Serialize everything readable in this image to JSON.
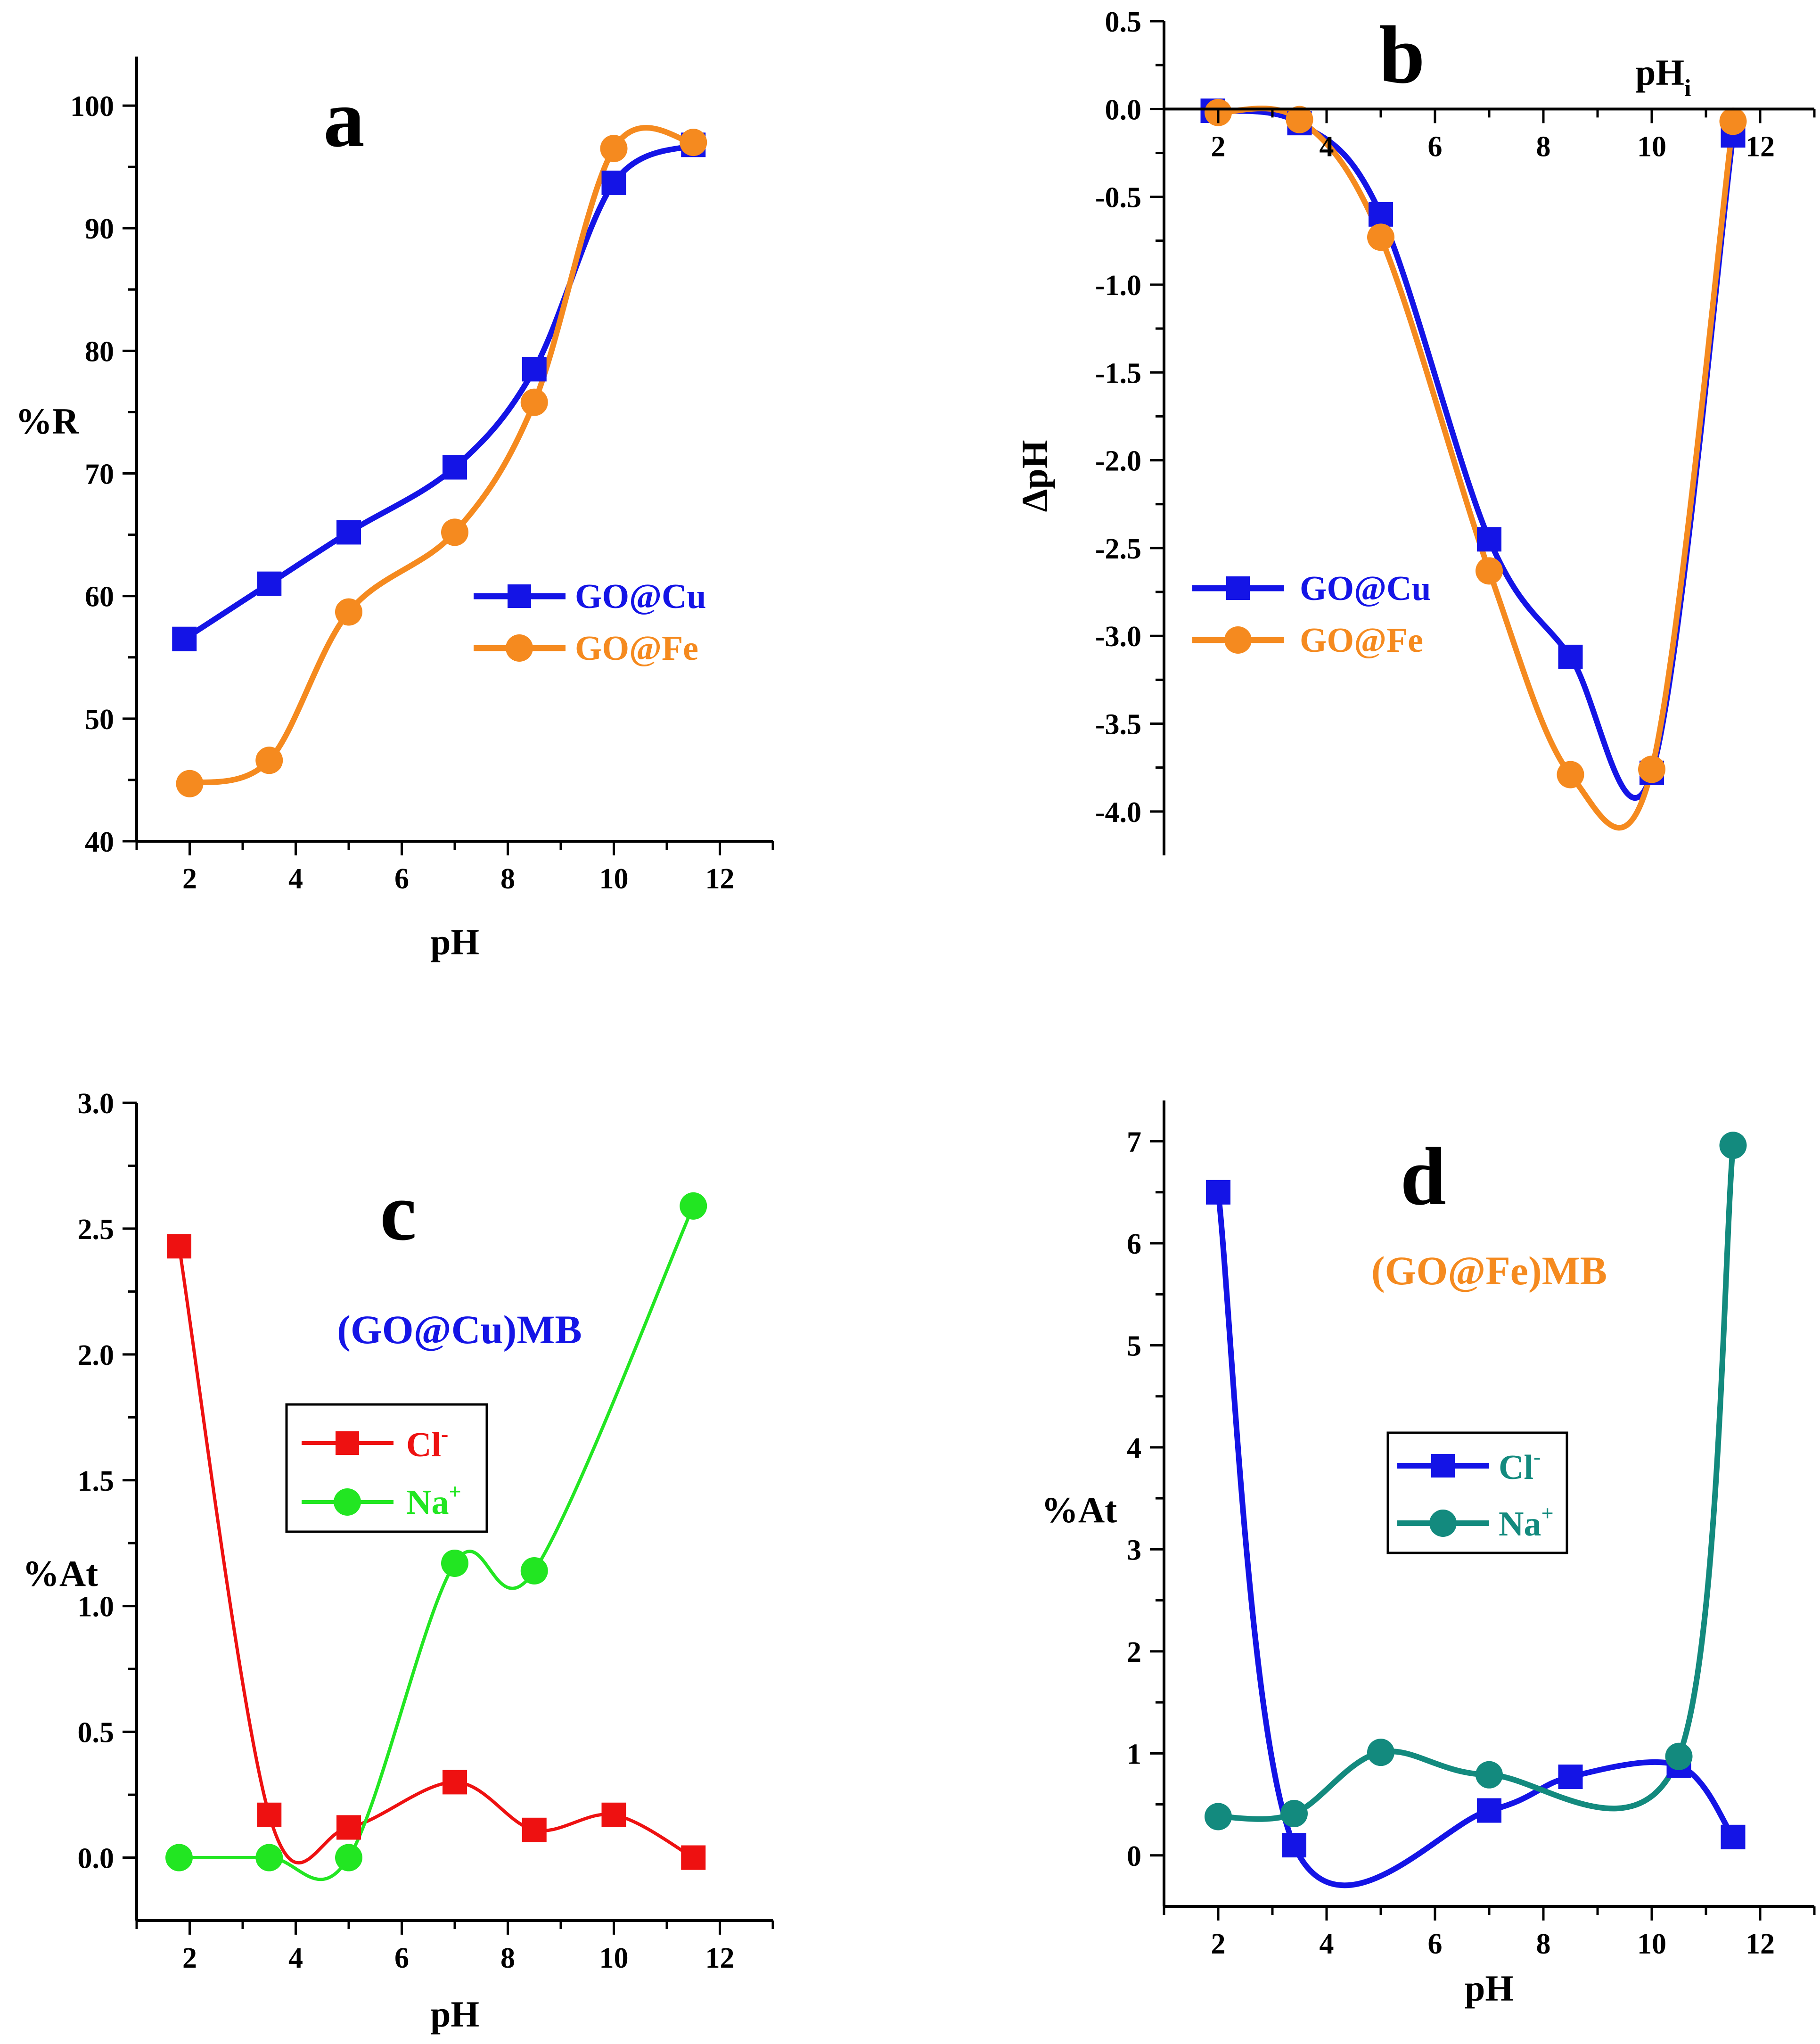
{
  "colors": {
    "blue": "#1414e6",
    "orange": "#f58a1f",
    "red": "#ee1111",
    "green": "#22e622",
    "teal": "#138a7e",
    "axis": "#000000"
  },
  "panels": [
    {
      "id": "a",
      "letter": "a",
      "xlabel": "pH",
      "ylabel": "%R",
      "xticks": [
        "2",
        "4",
        "6",
        "8",
        "10",
        "12"
      ],
      "yticks": [
        "40",
        "50",
        "60",
        "70",
        "80",
        "90",
        "100"
      ],
      "legend": [
        {
          "label": "GO@Cu"
        },
        {
          "label": "GO@Fe"
        }
      ]
    },
    {
      "id": "b",
      "letter": "b",
      "xlabel": "pH",
      "xlabel_sub": "i",
      "ylabel": "ΔpH",
      "xticks": [
        "2",
        "4",
        "6",
        "8",
        "10",
        "12"
      ],
      "yticks": [
        "0.5",
        "0.0",
        "-0.5",
        "-1.0",
        "-1.5",
        "-2.0",
        "-2.5",
        "-3.0",
        "-3.5",
        "-4.0"
      ],
      "legend": [
        {
          "label": "GO@Cu"
        },
        {
          "label": "GO@Fe"
        }
      ]
    },
    {
      "id": "c",
      "letter": "c",
      "xlabel": "pH",
      "ylabel": "%At",
      "inset_title": "(GO@Cu)MB",
      "xticks": [
        "2",
        "4",
        "6",
        "8",
        "10",
        "12"
      ],
      "yticks": [
        "0.0",
        "0.5",
        "1.0",
        "1.5",
        "2.0",
        "2.5",
        "3.0"
      ],
      "legend": [
        {
          "label": "Cl",
          "sup": "-"
        },
        {
          "label": "Na",
          "sup": "+"
        }
      ]
    },
    {
      "id": "d",
      "letter": "d",
      "xlabel": "pH",
      "ylabel": "%At",
      "inset_title": "(GO@Fe)MB",
      "xticks": [
        "2",
        "4",
        "6",
        "8",
        "10",
        "12"
      ],
      "yticks": [
        "0",
        "1",
        "2",
        "3",
        "4",
        "5",
        "6",
        "7"
      ],
      "legend": [
        {
          "label": "Cl",
          "sup": "-"
        },
        {
          "label": "Na",
          "sup": "+"
        }
      ]
    }
  ],
  "chart_data": [
    {
      "panel": "a",
      "type": "line",
      "title": "a",
      "xlabel": "pH",
      "ylabel": "%R",
      "xlim": [
        1,
        13
      ],
      "ylim": [
        40,
        104
      ],
      "series": [
        {
          "name": "GO@Cu",
          "color": "#1414e6",
          "marker": "square",
          "x": [
            1.9,
            3.5,
            5.0,
            7.0,
            8.5,
            10.0,
            11.5
          ],
          "y": [
            56.5,
            61.0,
            65.2,
            70.5,
            78.5,
            93.7,
            96.8
          ]
        },
        {
          "name": "GO@Fe",
          "color": "#f58a1f",
          "marker": "circle",
          "x": [
            2.0,
            3.5,
            5.0,
            7.0,
            8.5,
            10.0,
            11.5
          ],
          "y": [
            44.7,
            46.6,
            58.7,
            65.2,
            75.8,
            96.5,
            97.0
          ]
        }
      ]
    },
    {
      "panel": "b",
      "type": "line",
      "title": "b",
      "xlabel": "pHi",
      "ylabel": "ΔpH",
      "xlim": [
        1,
        13
      ],
      "ylim": [
        -4.25,
        0.5
      ],
      "series": [
        {
          "name": "GO@Cu",
          "color": "#1414e6",
          "marker": "square",
          "x": [
            1.9,
            3.5,
            5.0,
            7.0,
            8.5,
            10.0,
            11.5
          ],
          "y": [
            -0.01,
            -0.08,
            -0.6,
            -2.45,
            -3.12,
            -3.78,
            -0.15
          ]
        },
        {
          "name": "GO@Fe",
          "color": "#f58a1f",
          "marker": "circle",
          "x": [
            2.0,
            3.5,
            5.0,
            7.0,
            8.5,
            10.0,
            11.5
          ],
          "y": [
            -0.02,
            -0.06,
            -0.73,
            -2.63,
            -3.79,
            -3.76,
            -0.07
          ]
        }
      ]
    },
    {
      "panel": "c",
      "type": "line",
      "title": "(GO@Cu)MB",
      "xlabel": "pH",
      "ylabel": "%At",
      "xlim": [
        1,
        13
      ],
      "ylim": [
        -0.25,
        3.0
      ],
      "series": [
        {
          "name": "Cl-",
          "color": "#ee1111",
          "marker": "square",
          "x": [
            1.8,
            3.5,
            5.0,
            7.0,
            8.5,
            10.0,
            11.5
          ],
          "y": [
            2.43,
            0.17,
            0.12,
            0.3,
            0.11,
            0.17,
            0.0
          ]
        },
        {
          "name": "Na+",
          "color": "#22e622",
          "marker": "circle",
          "x": [
            1.8,
            3.5,
            5.0,
            7.0,
            8.5,
            11.5
          ],
          "y": [
            0.0,
            0.0,
            0.0,
            1.17,
            1.14,
            2.59
          ]
        }
      ]
    },
    {
      "panel": "d",
      "type": "line",
      "title": "(GO@Fe)MB",
      "xlabel": "pH",
      "ylabel": "%At",
      "xlim": [
        1,
        13
      ],
      "ylim": [
        -0.5,
        7.4
      ],
      "series": [
        {
          "name": "Cl-",
          "color": "#1414e6",
          "marker": "square",
          "x": [
            2.0,
            3.4,
            7.0,
            8.5,
            10.5,
            11.5
          ],
          "y": [
            6.5,
            0.1,
            0.44,
            0.77,
            0.88,
            0.18
          ]
        },
        {
          "name": "Na+",
          "color": "#138a7e",
          "marker": "circle",
          "x": [
            2.0,
            3.4,
            5.0,
            7.0,
            10.5,
            11.5
          ],
          "y": [
            0.38,
            0.41,
            1.01,
            0.79,
            0.97,
            6.96
          ]
        }
      ]
    }
  ]
}
